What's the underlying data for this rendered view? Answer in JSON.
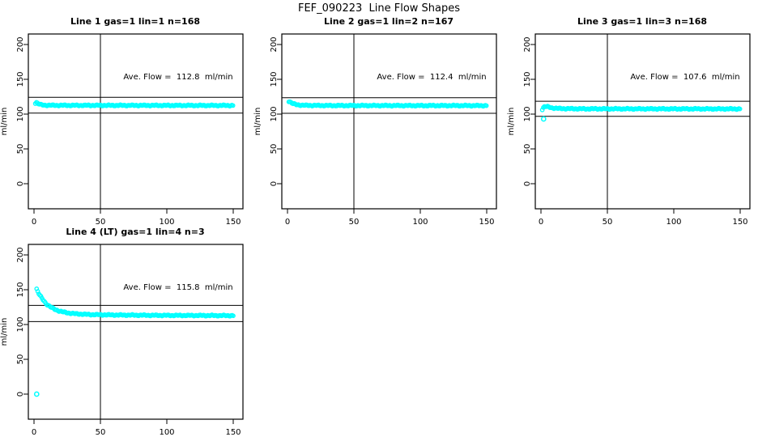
{
  "page_title": "FEF_090223  Line Flow Shapes",
  "colors": {
    "marker": "#00ffff",
    "axis": "#000000",
    "text": "#000000",
    "background": "#ffffff"
  },
  "chart_data": [
    {
      "type": "scatter",
      "title": "Line 1 gas=1 lin=1 n=168",
      "annotation": "Ave. Flow =  112.8  ml/min",
      "ave_flow": 112.8,
      "n": 168,
      "ylabel": "ml/min",
      "x_ticks": [
        0,
        50,
        100,
        150
      ],
      "y_ticks": [
        0,
        50,
        100,
        150,
        200
      ],
      "xlim": [
        0,
        150
      ],
      "ylim": [
        0,
        200
      ],
      "vline_x": 50,
      "hline_upper": 124.1,
      "hline_lower": 101.5,
      "x_start": 1,
      "x_end": 150,
      "profile": [
        [
          1,
          116
        ],
        [
          2,
          117
        ],
        [
          3,
          115
        ],
        [
          5,
          113.5
        ],
        [
          8,
          112.8
        ],
        [
          15,
          112.6
        ],
        [
          150,
          112.4
        ]
      ],
      "outliers": []
    },
    {
      "type": "scatter",
      "title": "Line 2 gas=1 lin=2 n=167",
      "annotation": "Ave. Flow =  112.4  ml/min",
      "ave_flow": 112.4,
      "n": 167,
      "ylabel": "ml/min",
      "x_ticks": [
        0,
        50,
        100,
        150
      ],
      "y_ticks": [
        0,
        50,
        100,
        150,
        200
      ],
      "xlim": [
        0,
        150
      ],
      "ylim": [
        0,
        200
      ],
      "vline_x": 50,
      "hline_upper": 123.6,
      "hline_lower": 101.2,
      "x_start": 1,
      "x_end": 150,
      "profile": [
        [
          1,
          118.5
        ],
        [
          2,
          117.5
        ],
        [
          4,
          115
        ],
        [
          7,
          113.5
        ],
        [
          12,
          112.6
        ],
        [
          30,
          112.3
        ],
        [
          150,
          112.2
        ]
      ],
      "outliers": []
    },
    {
      "type": "scatter",
      "title": "Line 3 gas=1 lin=3 n=168",
      "annotation": "Ave. Flow =  107.6  ml/min",
      "ave_flow": 107.6,
      "n": 168,
      "ylabel": "ml/min",
      "x_ticks": [
        0,
        50,
        100,
        150
      ],
      "y_ticks": [
        0,
        50,
        100,
        150,
        200
      ],
      "xlim": [
        0,
        150
      ],
      "ylim": [
        0,
        200
      ],
      "vline_x": 50,
      "hline_upper": 118.4,
      "hline_lower": 96.8,
      "x_start": 1,
      "x_end": 150,
      "profile": [
        [
          1,
          107
        ],
        [
          2,
          110
        ],
        [
          3,
          111
        ],
        [
          5,
          110.5
        ],
        [
          8,
          109
        ],
        [
          14,
          108
        ],
        [
          30,
          107.6
        ],
        [
          150,
          107.5
        ]
      ],
      "outliers": [
        [
          2,
          93
        ]
      ]
    },
    {
      "type": "scatter",
      "title": "Line 4 (LT) gas=1 lin=4 n=3",
      "annotation": "Ave. Flow =  115.8  ml/min",
      "ave_flow": 115.8,
      "n": 3,
      "ylabel": "ml/min",
      "x_ticks": [
        0,
        50,
        100,
        150
      ],
      "y_ticks": [
        0,
        50,
        100,
        150,
        200
      ],
      "xlim": [
        0,
        150
      ],
      "ylim": [
        0,
        200
      ],
      "vline_x": 50,
      "hline_upper": 127.4,
      "hline_lower": 104.2,
      "x_start": 2,
      "x_end": 150,
      "profile": [
        [
          2,
          151
        ],
        [
          3,
          146.5
        ],
        [
          4,
          143
        ],
        [
          6,
          137.5
        ],
        [
          8,
          132.5
        ],
        [
          10,
          128.5
        ],
        [
          13,
          124.5
        ],
        [
          16,
          121.5
        ],
        [
          20,
          118.8
        ],
        [
          25,
          116.8
        ],
        [
          32,
          115.3
        ],
        [
          42,
          114.3
        ],
        [
          60,
          113.7
        ],
        [
          90,
          113.2
        ],
        [
          150,
          112.8
        ]
      ],
      "outliers": [
        [
          2,
          0
        ]
      ]
    }
  ]
}
